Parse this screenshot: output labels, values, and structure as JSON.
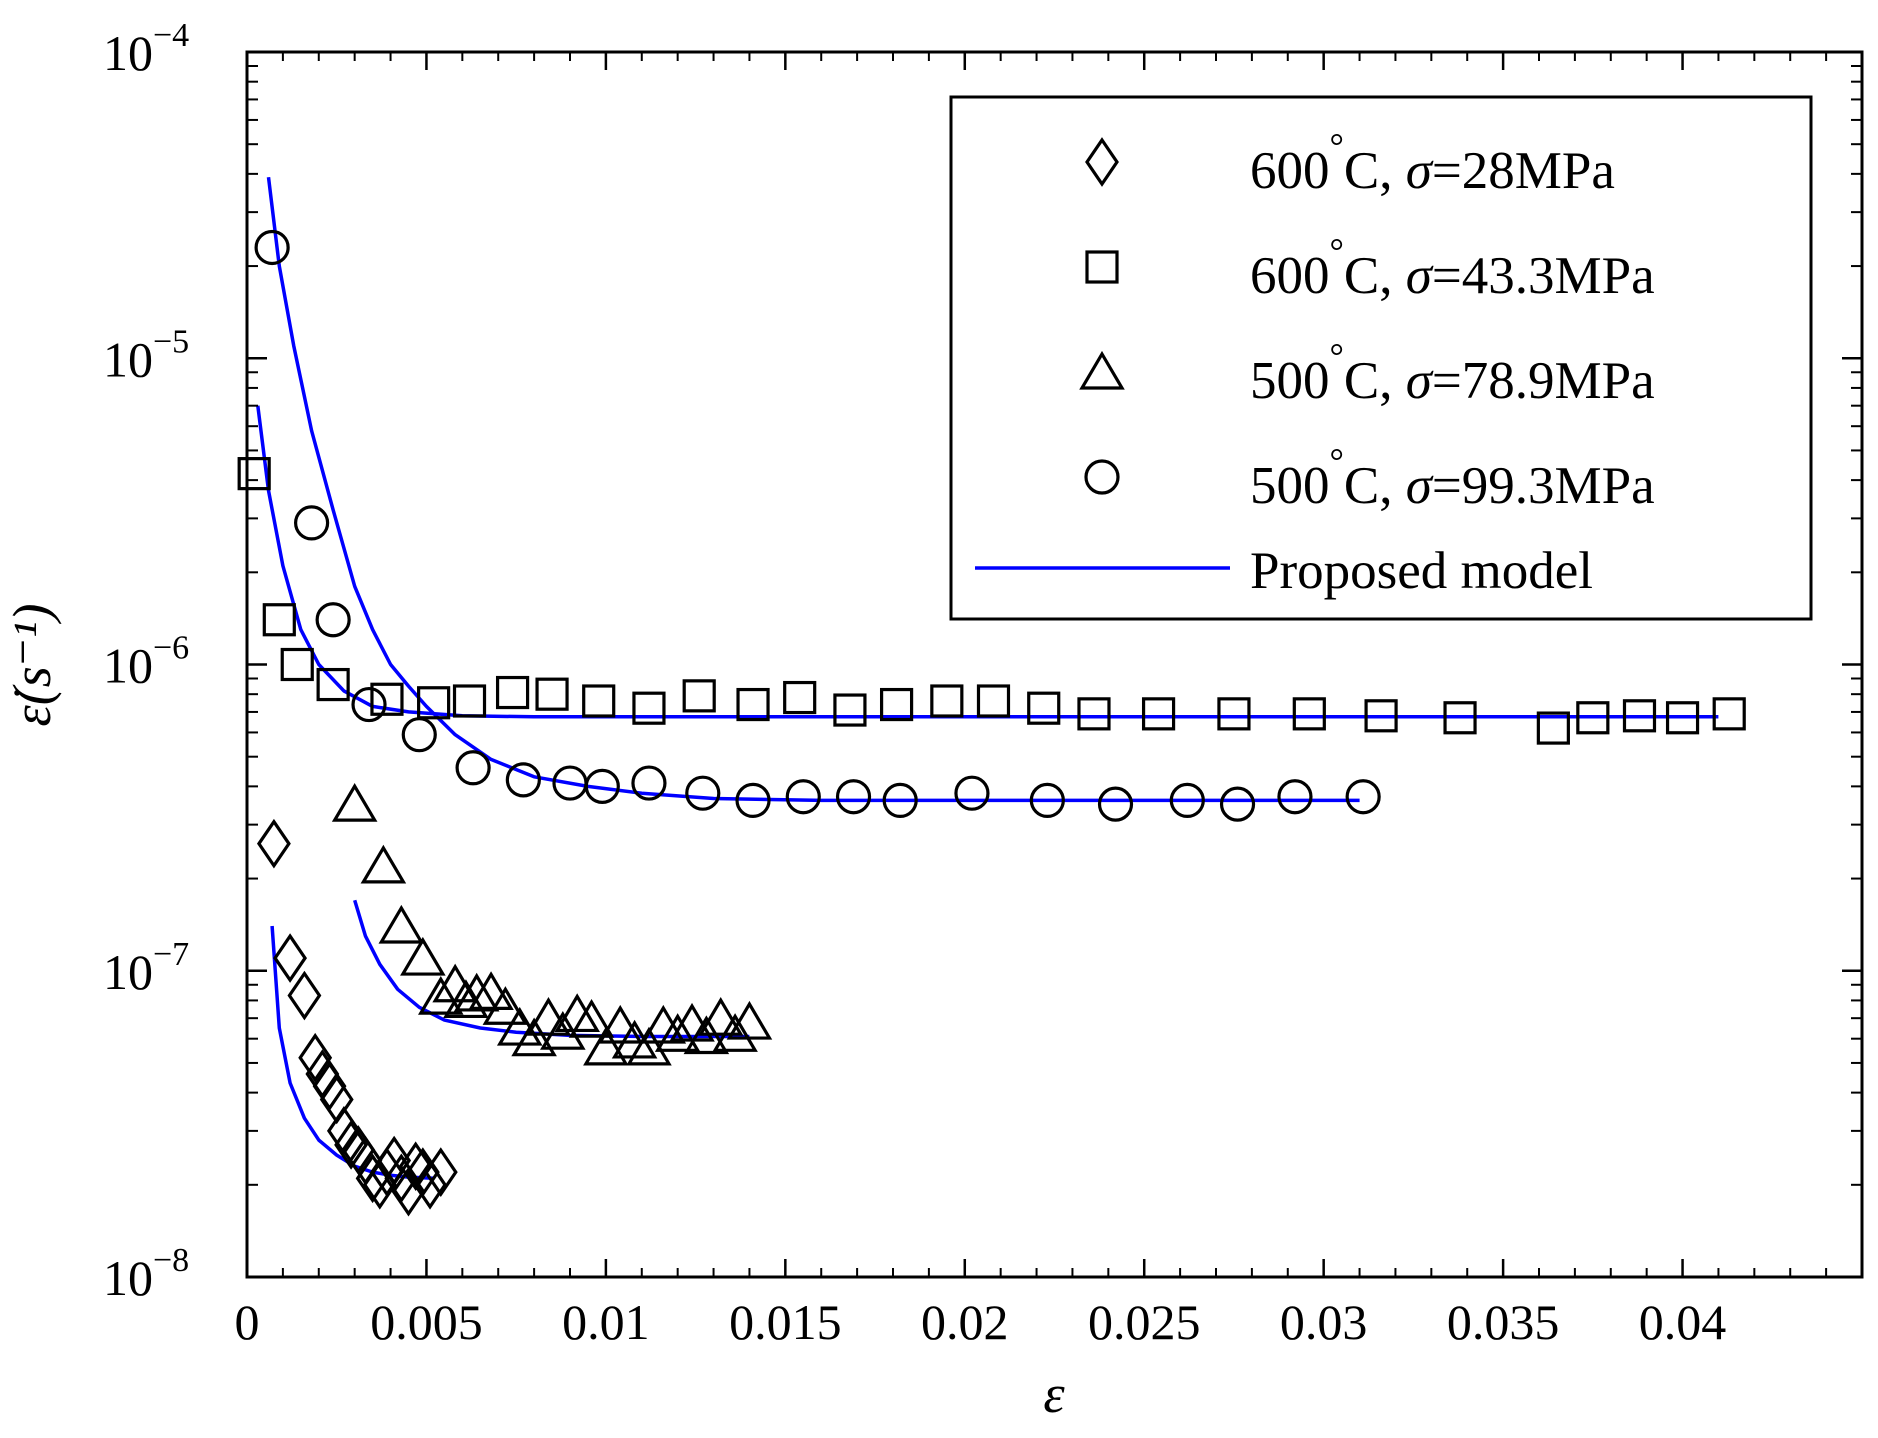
{
  "chart_data": {
    "type": "scatter",
    "title": "",
    "xlabel": "ε",
    "ylabel": "ε̇(s⁻¹)",
    "xlim": [
      0,
      0.045
    ],
    "ylim": [
      1e-08,
      0.0001
    ],
    "yscale": "log",
    "x_ticks": [
      0,
      0.005,
      0.01,
      0.015,
      0.02,
      0.025,
      0.03,
      0.035,
      0.04
    ],
    "x_tick_labels": [
      "0",
      "0.005",
      "0.01",
      "0.015",
      "0.02",
      "0.025",
      "0.03",
      "0.035",
      "0.04"
    ],
    "y_ticks": [
      {
        "value": 1e-08,
        "base": "10",
        "exp": "−8"
      },
      {
        "value": 1e-07,
        "base": "10",
        "exp": "−7"
      },
      {
        "value": 1e-06,
        "base": "10",
        "exp": "−6"
      },
      {
        "value": 1e-05,
        "base": "10",
        "exp": "−5"
      },
      {
        "value": 0.0001,
        "base": "10",
        "exp": "−4"
      }
    ],
    "legend_position": "top-right",
    "model_color": "#0000ff",
    "series": [
      {
        "name": "600°C, σ=28MPa",
        "legend": {
          "temp": "600",
          "deg": "°",
          "rest": "C, ",
          "sigma": "σ",
          "stress": "=28MPa"
        },
        "marker": "diamond",
        "x": [
          0.00075,
          0.0012,
          0.0016,
          0.0019,
          0.0021,
          0.0023,
          0.0025,
          0.0027,
          0.0029,
          0.0031,
          0.0033,
          0.0035,
          0.0037,
          0.0039,
          0.0041,
          0.0043,
          0.0045,
          0.0047,
          0.0049,
          0.0051,
          0.0054
        ],
        "y": [
          2.6e-07,
          1.1e-07,
          8.3e-08,
          5.2e-08,
          4.6e-08,
          4.2e-08,
          3.8e-08,
          3e-08,
          2.7e-08,
          2.6e-08,
          2.4e-08,
          2.1e-08,
          2e-08,
          2.2e-08,
          2.4e-08,
          2.1e-08,
          1.9e-08,
          2.3e-08,
          2.2e-08,
          2e-08,
          2.2e-08
        ]
      },
      {
        "name": "600°C, σ=43.3MPa",
        "legend": {
          "temp": "600",
          "deg": "°",
          "rest": "C, ",
          "sigma": "σ",
          "stress": "=43.3MPa"
        },
        "marker": "square",
        "x": [
          0.0002,
          0.0009,
          0.0014,
          0.0024,
          0.0039,
          0.0052,
          0.0062,
          0.0074,
          0.0085,
          0.0098,
          0.0112,
          0.0126,
          0.0141,
          0.0154,
          0.0168,
          0.0181,
          0.0195,
          0.0208,
          0.0222,
          0.0236,
          0.0254,
          0.0275,
          0.0296,
          0.0316,
          0.0338,
          0.0364,
          0.0375,
          0.0388,
          0.04,
          0.0413
        ],
        "y": [
          4.2e-06,
          1.4e-06,
          1e-06,
          8.6e-07,
          7.7e-07,
          7.5e-07,
          7.6e-07,
          8.1e-07,
          8e-07,
          7.6e-07,
          7.2e-07,
          7.9e-07,
          7.4e-07,
          7.8e-07,
          7.1e-07,
          7.4e-07,
          7.6e-07,
          7.6e-07,
          7.2e-07,
          6.9e-07,
          6.9e-07,
          6.9e-07,
          6.9e-07,
          6.8e-07,
          6.7e-07,
          6.2e-07,
          6.7e-07,
          6.8e-07,
          6.7e-07,
          6.9e-07
        ]
      },
      {
        "name": "500°C, σ=78.9MPa",
        "legend": {
          "temp": "500",
          "deg": "°",
          "rest": "C, ",
          "sigma": "σ",
          "stress": "=78.9MPa"
        },
        "marker": "triangle",
        "x": [
          0.003,
          0.0038,
          0.0043,
          0.0049,
          0.0054,
          0.0058,
          0.0061,
          0.0064,
          0.0068,
          0.0072,
          0.0076,
          0.008,
          0.0084,
          0.0088,
          0.0092,
          0.0096,
          0.01,
          0.0104,
          0.0108,
          0.0112,
          0.0116,
          0.012,
          0.0124,
          0.0128,
          0.0132,
          0.0136,
          0.014
        ],
        "y": [
          3.5e-07,
          2.2e-07,
          1.4e-07,
          1.1e-07,
          8.2e-08,
          9e-08,
          8e-08,
          8.4e-08,
          8.5e-08,
          7.6e-08,
          6.5e-08,
          6e-08,
          7e-08,
          6.3e-08,
          7.2e-08,
          6.9e-08,
          5.6e-08,
          6.6e-08,
          5.9e-08,
          5.6e-08,
          6.6e-08,
          6.2e-08,
          6.7e-08,
          6.1e-08,
          7e-08,
          6.2e-08,
          6.8e-08
        ]
      },
      {
        "name": "500°C, σ=99.3MPa",
        "legend": {
          "temp": "500",
          "deg": "°",
          "rest": "C, ",
          "sigma": "σ",
          "stress": "=99.3MPa"
        },
        "marker": "circle",
        "x": [
          0.0007,
          0.0018,
          0.0024,
          0.0034,
          0.0048,
          0.0063,
          0.0077,
          0.009,
          0.0099,
          0.0112,
          0.0127,
          0.0141,
          0.0155,
          0.0169,
          0.0182,
          0.0202,
          0.0223,
          0.0242,
          0.0262,
          0.0276,
          0.0292,
          0.0311
        ],
        "y": [
          2.3e-05,
          2.9e-06,
          1.4e-06,
          7.4e-07,
          5.9e-07,
          4.6e-07,
          4.2e-07,
          4.1e-07,
          4e-07,
          4.1e-07,
          3.8e-07,
          3.6e-07,
          3.7e-07,
          3.7e-07,
          3.6e-07,
          3.8e-07,
          3.6e-07,
          3.5e-07,
          3.6e-07,
          3.5e-07,
          3.7e-07,
          3.7e-07
        ]
      },
      {
        "name": "Proposed model",
        "marker": "line",
        "curves": [
          {
            "x": [
              0.0007,
              0.0009,
              0.0012,
              0.0016,
              0.002,
              0.0025,
              0.003,
              0.0035,
              0.004,
              0.0045,
              0.0052
            ],
            "y": [
              1.4e-07,
              6.5e-08,
              4.3e-08,
              3.3e-08,
              2.8e-08,
              2.5e-08,
              2.3e-08,
              2.2e-08,
              2.15e-08,
              2.12e-08,
              2.1e-08
            ]
          },
          {
            "x": [
              0.0003,
              0.0006,
              0.001,
              0.0015,
              0.002,
              0.0027,
              0.0035,
              0.0045,
              0.006,
              0.008,
              0.012,
              0.02,
              0.03,
              0.041
            ],
            "y": [
              7e-06,
              3.7e-06,
              2.1e-06,
              1.3e-06,
              1e-06,
              8.2e-07,
              7.3e-07,
              7e-07,
              6.8e-07,
              6.75e-07,
              6.75e-07,
              6.75e-07,
              6.75e-07,
              6.75e-07
            ]
          },
          {
            "x": [
              0.003,
              0.0033,
              0.0037,
              0.0042,
              0.0048,
              0.0055,
              0.0065,
              0.0075,
              0.009,
              0.011,
              0.014
            ],
            "y": [
              1.7e-07,
              1.3e-07,
              1.05e-07,
              8.7e-08,
              7.6e-08,
              6.9e-08,
              6.5e-08,
              6.3e-08,
              6.15e-08,
              6.1e-08,
              6.1e-08
            ]
          },
          {
            "x": [
              0.0006,
              0.0009,
              0.0013,
              0.0018,
              0.0024,
              0.003,
              0.0035,
              0.004,
              0.0045,
              0.005,
              0.0058,
              0.0068,
              0.008,
              0.0095,
              0.011,
              0.013,
              0.016,
              0.02,
              0.025,
              0.031
            ],
            "y": [
              3.9e-05,
              2e-05,
              1.1e-05,
              5.8e-06,
              3.2e-06,
              1.8e-06,
              1.3e-06,
              1e-06,
              8.5e-07,
              7.3e-07,
              5.9e-07,
              4.9e-07,
              4.3e-07,
              4e-07,
              3.8e-07,
              3.65e-07,
              3.6e-07,
              3.6e-07,
              3.6e-07,
              3.6e-07
            ]
          }
        ]
      }
    ]
  }
}
